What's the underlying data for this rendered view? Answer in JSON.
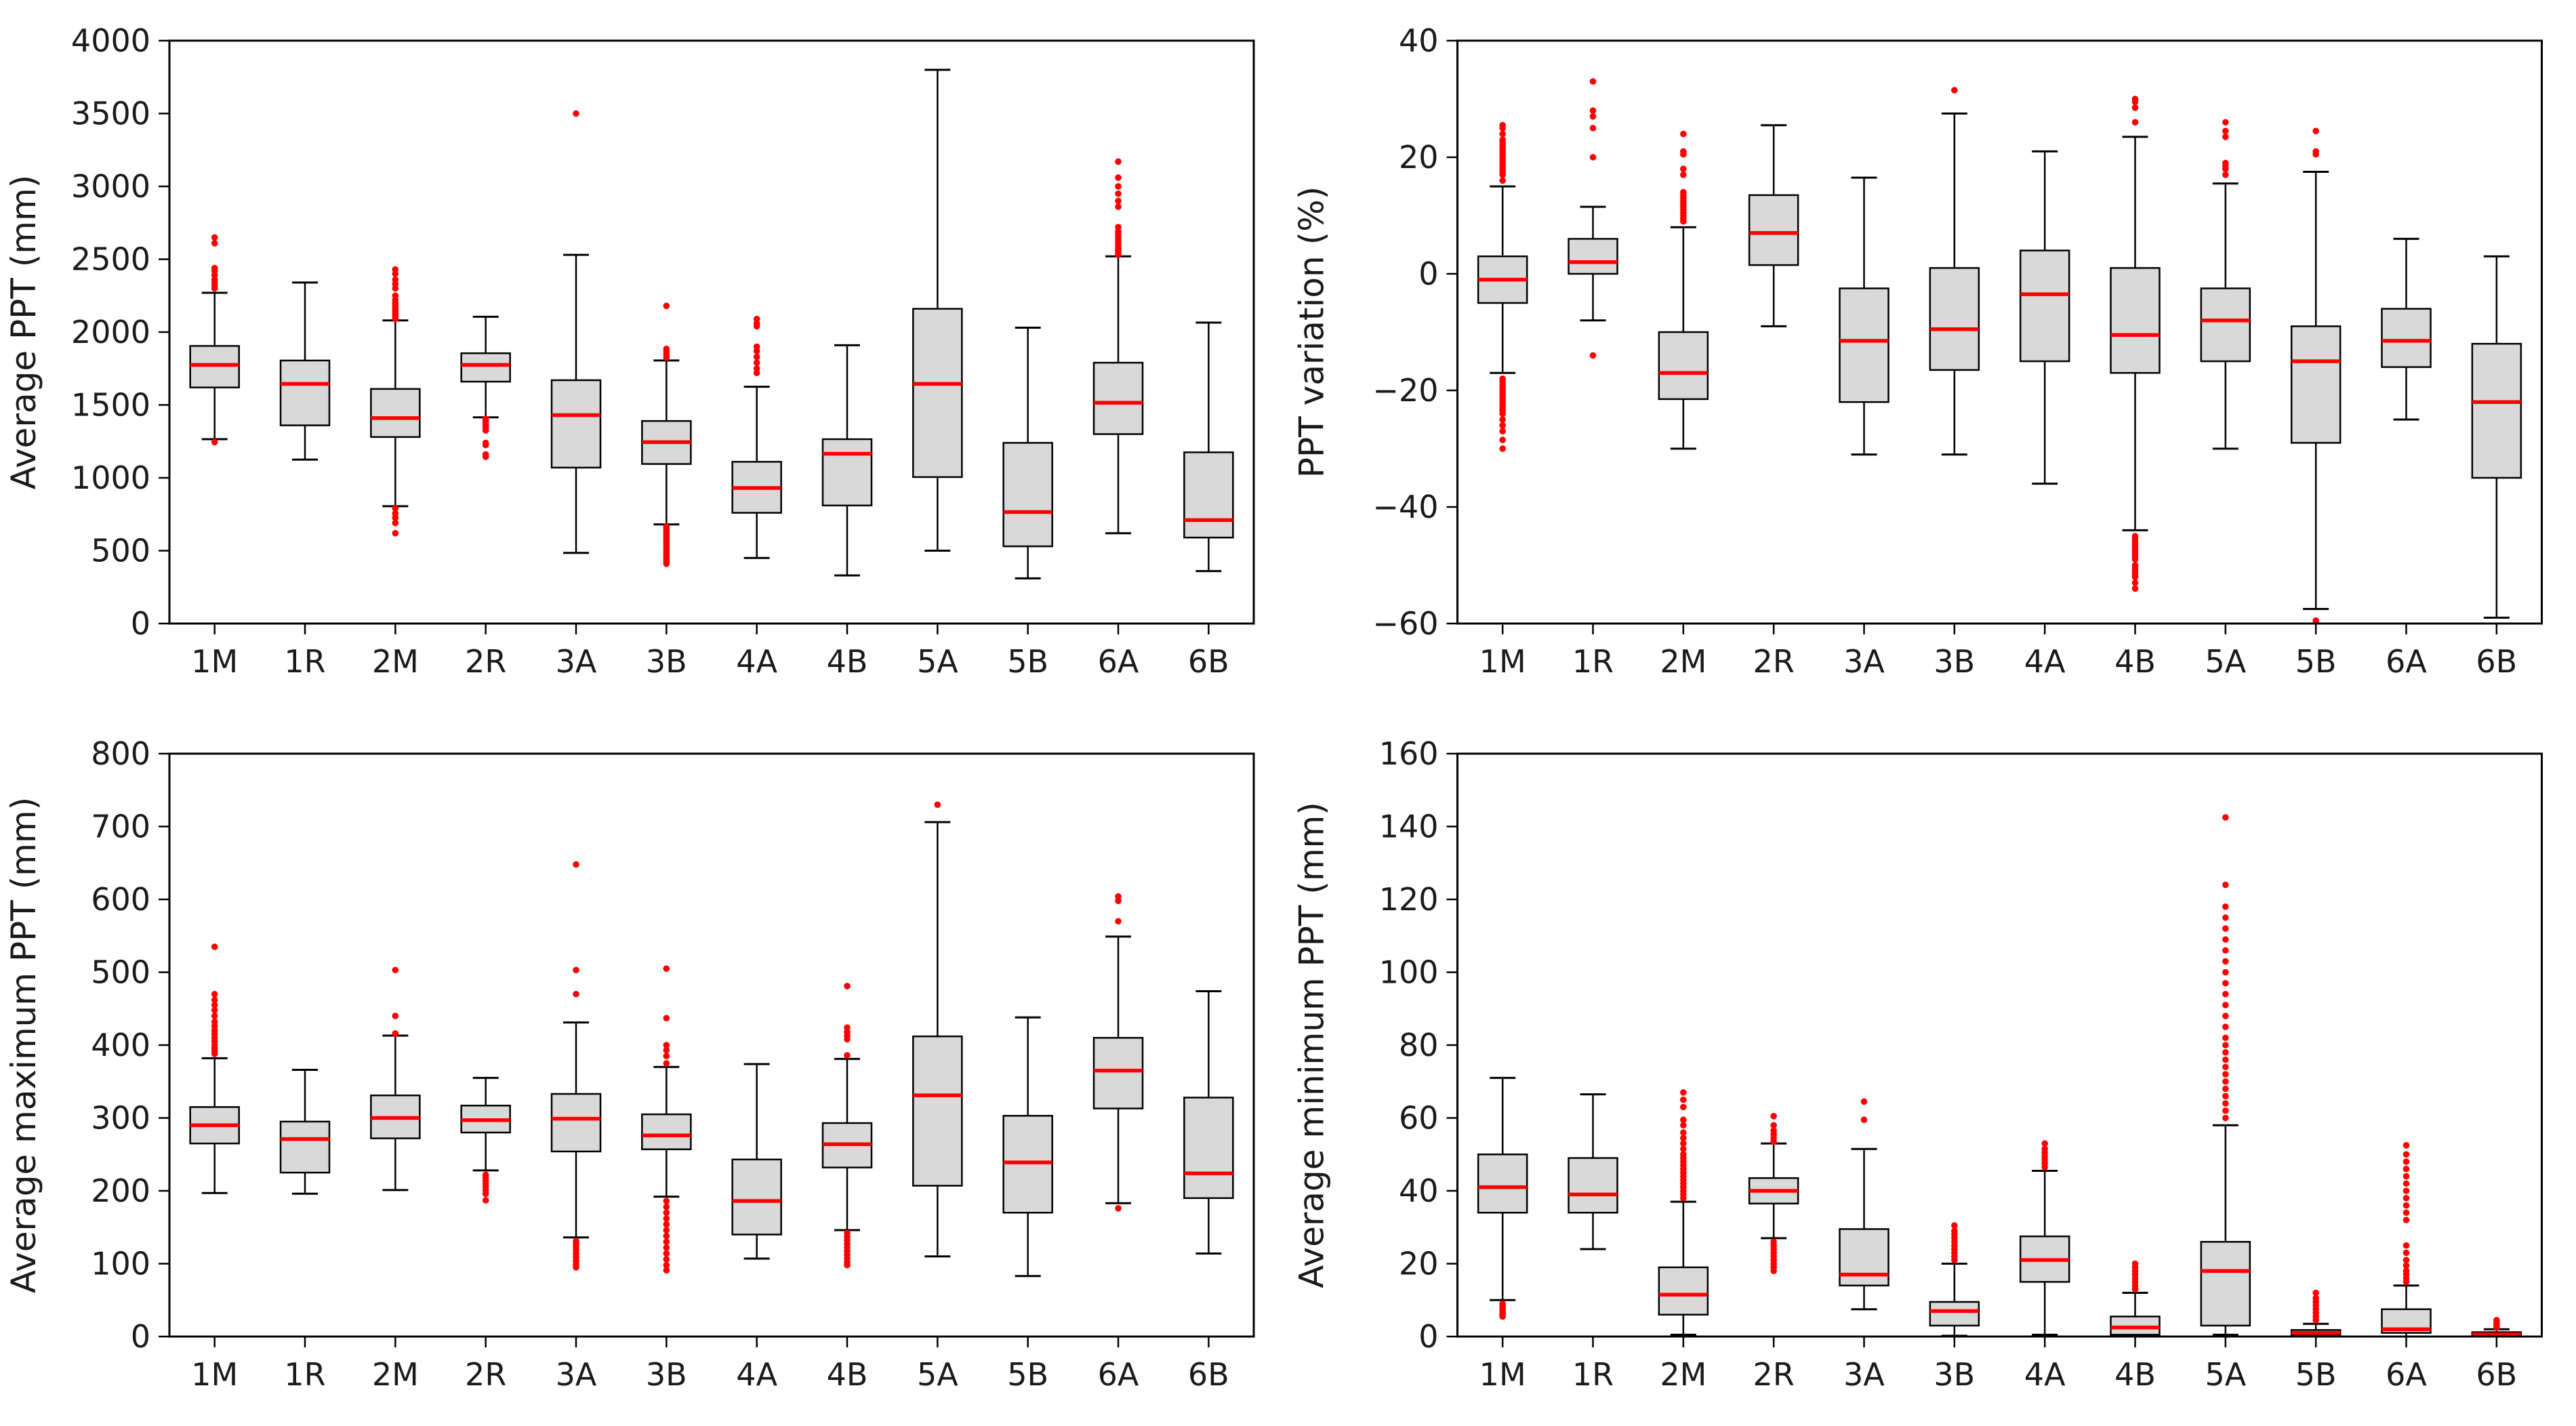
{
  "style": {
    "background": "#ffffff",
    "box_fill": "#d9d9d9",
    "box_edge": "#000000",
    "whisker_color": "#000000",
    "median_color": "#ff0000",
    "flier_color": "#ff0000",
    "text_color": "#1a1a1a",
    "tick_font_size": 46,
    "label_font_size": 50
  },
  "categories": [
    "1M",
    "1R",
    "2M",
    "2R",
    "3A",
    "3B",
    "4A",
    "4B",
    "5A",
    "5B",
    "6A",
    "6B"
  ],
  "chart_data": [
    {
      "type": "box",
      "name": "average-ppt",
      "position": "top-left",
      "title": "",
      "xlabel": "",
      "ylabel": "Average PPT (mm)",
      "ylim": [
        0,
        4000
      ],
      "yticks": [
        0,
        500,
        1000,
        1500,
        2000,
        2500,
        3000,
        3500,
        4000
      ],
      "grid": false,
      "categories": [
        "1M",
        "1R",
        "2M",
        "2R",
        "3A",
        "3B",
        "4A",
        "4B",
        "5A",
        "5B",
        "6A",
        "6B"
      ],
      "boxes": [
        {
          "category": "1M",
          "whislo": 1265,
          "q1": 1620,
          "med": 1775,
          "q3": 1905,
          "whishi": 2270,
          "fliers": [
            2300,
            2320,
            2340,
            2360,
            2390,
            2420,
            2440,
            2610,
            2650,
            1245
          ]
        },
        {
          "category": "1R",
          "whislo": 1125,
          "q1": 1360,
          "med": 1645,
          "q3": 1805,
          "whishi": 2340,
          "fliers": []
        },
        {
          "category": "2M",
          "whislo": 805,
          "q1": 1280,
          "med": 1410,
          "q3": 1610,
          "whishi": 2080,
          "fliers": [
            2090,
            2100,
            2115,
            2130,
            2145,
            2160,
            2180,
            2200,
            2220,
            2250,
            2300,
            2330,
            2360,
            2400,
            2430,
            790,
            755,
            725,
            690,
            620
          ]
        },
        {
          "category": "2R",
          "whislo": 1415,
          "q1": 1660,
          "med": 1775,
          "q3": 1855,
          "whishi": 2105,
          "fliers": [
            1405,
            1395,
            1385,
            1370,
            1355,
            1340,
            1325,
            1240,
            1225,
            1160,
            1145
          ]
        },
        {
          "category": "3A",
          "whislo": 485,
          "q1": 1070,
          "med": 1430,
          "q3": 1670,
          "whishi": 2530,
          "fliers": [
            3500
          ]
        },
        {
          "category": "3B",
          "whislo": 680,
          "q1": 1095,
          "med": 1245,
          "q3": 1390,
          "whishi": 1805,
          "fliers": [
            1825,
            1845,
            1865,
            1885,
            2180,
            665,
            650,
            635,
            620,
            605,
            590,
            575,
            560,
            545,
            530,
            515,
            500,
            485,
            470,
            455,
            440,
            425,
            410
          ]
        },
        {
          "category": "4A",
          "whislo": 450,
          "q1": 760,
          "med": 930,
          "q3": 1110,
          "whishi": 1625,
          "fliers": [
            1720,
            1750,
            1790,
            1830,
            1870,
            1900,
            2040,
            2060,
            2090
          ]
        },
        {
          "category": "4B",
          "whislo": 330,
          "q1": 810,
          "med": 1165,
          "q3": 1265,
          "whishi": 1910,
          "fliers": []
        },
        {
          "category": "5A",
          "whislo": 500,
          "q1": 1005,
          "med": 1645,
          "q3": 2160,
          "whishi": 3800,
          "fliers": []
        },
        {
          "category": "5B",
          "whislo": 310,
          "q1": 530,
          "med": 765,
          "q3": 1240,
          "whishi": 2030,
          "fliers": []
        },
        {
          "category": "6A",
          "whislo": 620,
          "q1": 1300,
          "med": 1515,
          "q3": 1790,
          "whishi": 2520,
          "fliers": [
            2530,
            2545,
            2560,
            2575,
            2590,
            2610,
            2630,
            2650,
            2670,
            2690,
            2720,
            2860,
            2900,
            2950,
            3000,
            3060,
            3170
          ]
        },
        {
          "category": "6B",
          "whislo": 360,
          "q1": 590,
          "med": 710,
          "q3": 1175,
          "whishi": 2065,
          "fliers": []
        }
      ]
    },
    {
      "type": "box",
      "name": "ppt-variation",
      "position": "top-right",
      "title": "",
      "xlabel": "",
      "ylabel": "PPT variation (%)",
      "ylim": [
        -60,
        40
      ],
      "yticks": [
        -60,
        -40,
        -20,
        0,
        20,
        40
      ],
      "grid": false,
      "categories": [
        "1M",
        "1R",
        "2M",
        "2R",
        "3A",
        "3B",
        "4A",
        "4B",
        "5A",
        "5B",
        "6A",
        "6B"
      ],
      "boxes": [
        {
          "category": "1M",
          "whislo": -17,
          "q1": -5,
          "med": -1,
          "q3": 3,
          "whishi": 15,
          "fliers": [
            16,
            17,
            17.5,
            18,
            18.5,
            19,
            19.5,
            20,
            20.5,
            21,
            21.5,
            22,
            22.5,
            23,
            24,
            25,
            25.5,
            -18,
            -18.5,
            -19,
            -19.5,
            -20,
            -20.5,
            -21,
            -21.5,
            -22,
            -22.5,
            -23,
            -23.5,
            -24,
            -25,
            -26,
            -27,
            -28.5,
            -30
          ]
        },
        {
          "category": "1R",
          "whislo": -8,
          "q1": 0,
          "med": 2,
          "q3": 6,
          "whishi": 11.5,
          "fliers": [
            20,
            25,
            27,
            28,
            33,
            -14
          ]
        },
        {
          "category": "2M",
          "whislo": -30,
          "q1": -21.5,
          "med": -17,
          "q3": -10,
          "whishi": 8,
          "fliers": [
            9,
            9.5,
            10,
            10.5,
            11,
            11.5,
            12,
            12.5,
            13,
            13.5,
            14,
            17,
            18,
            20.5,
            21,
            24
          ]
        },
        {
          "category": "2R",
          "whislo": -9,
          "q1": 1.5,
          "med": 7,
          "q3": 13.5,
          "whishi": 25.5,
          "fliers": []
        },
        {
          "category": "3A",
          "whislo": -31,
          "q1": -22,
          "med": -11.5,
          "q3": -2.5,
          "whishi": 16.5,
          "fliers": []
        },
        {
          "category": "3B",
          "whislo": -31,
          "q1": -16.5,
          "med": -9.5,
          "q3": 1,
          "whishi": 27.5,
          "fliers": [
            31.5
          ]
        },
        {
          "category": "4A",
          "whislo": -36,
          "q1": -15,
          "med": -3.5,
          "q3": 4,
          "whishi": 21,
          "fliers": []
        },
        {
          "category": "4B",
          "whislo": -44,
          "q1": -17,
          "med": -10.5,
          "q3": 1,
          "whishi": 23.5,
          "fliers": [
            26,
            28.5,
            29.5,
            30,
            -45,
            -45.5,
            -46,
            -46.5,
            -47,
            -47.5,
            -48,
            -48.5,
            -49,
            -50,
            -50.5,
            -51,
            -51.5,
            -52,
            -53,
            -54
          ]
        },
        {
          "category": "5A",
          "whislo": -30,
          "q1": -15,
          "med": -8,
          "q3": -2.5,
          "whishi": 15.5,
          "fliers": [
            17,
            18,
            18.5,
            19,
            23.5,
            24.5,
            26
          ]
        },
        {
          "category": "5B",
          "whislo": -57.5,
          "q1": -29,
          "med": -15,
          "q3": -9,
          "whishi": 17.5,
          "fliers": [
            20.5,
            21,
            24.5,
            -59.5
          ]
        },
        {
          "category": "6A",
          "whislo": -25,
          "q1": -16,
          "med": -11.5,
          "q3": -6,
          "whishi": 6,
          "fliers": []
        },
        {
          "category": "6B",
          "whislo": -59,
          "q1": -35,
          "med": -22,
          "q3": -12,
          "whishi": 3,
          "fliers": []
        }
      ]
    },
    {
      "type": "box",
      "name": "average-maximum-ppt",
      "position": "bottom-left",
      "title": "",
      "xlabel": "",
      "ylabel": "Average maximum PPT (mm)",
      "ylim": [
        0,
        800
      ],
      "yticks": [
        0,
        100,
        200,
        300,
        400,
        500,
        600,
        700,
        800
      ],
      "grid": false,
      "categories": [
        "1M",
        "1R",
        "2M",
        "2R",
        "3A",
        "3B",
        "4A",
        "4B",
        "5A",
        "5B",
        "6A",
        "6B"
      ],
      "boxes": [
        {
          "category": "1M",
          "whislo": 197,
          "q1": 265,
          "med": 290,
          "q3": 315,
          "whishi": 382,
          "fliers": [
            388,
            392,
            396,
            400,
            405,
            410,
            415,
            420,
            426,
            432,
            440,
            448,
            455,
            462,
            470,
            535
          ]
        },
        {
          "category": "1R",
          "whislo": 196,
          "q1": 225,
          "med": 271,
          "q3": 295,
          "whishi": 366,
          "fliers": []
        },
        {
          "category": "2M",
          "whislo": 201,
          "q1": 272,
          "med": 300,
          "q3": 331,
          "whishi": 413,
          "fliers": [
            416,
            440,
            503
          ]
        },
        {
          "category": "2R",
          "whislo": 228,
          "q1": 280,
          "med": 297,
          "q3": 317,
          "whishi": 355,
          "fliers": [
            222,
            218,
            214,
            210,
            206,
            201,
            196,
            187
          ]
        },
        {
          "category": "3A",
          "whislo": 136,
          "q1": 254,
          "med": 299,
          "q3": 333,
          "whishi": 431,
          "fliers": [
            470,
            503,
            648,
            131,
            127,
            123,
            119,
            114,
            109,
            104,
            99,
            95
          ]
        },
        {
          "category": "3B",
          "whislo": 192,
          "q1": 257,
          "med": 276,
          "q3": 305,
          "whishi": 370,
          "fliers": [
            375,
            385,
            393,
            400,
            437,
            505,
            186,
            178,
            170,
            162,
            154,
            146,
            138,
            130,
            122,
            114,
            106,
            98,
            91
          ]
        },
        {
          "category": "4A",
          "whislo": 107,
          "q1": 140,
          "med": 186,
          "q3": 243,
          "whishi": 374,
          "fliers": []
        },
        {
          "category": "4B",
          "whislo": 146,
          "q1": 232,
          "med": 264,
          "q3": 293,
          "whishi": 381,
          "fliers": [
            386,
            408,
            413,
            418,
            424,
            481,
            142,
            137,
            132,
            127,
            122,
            117,
            112,
            107,
            102,
            98
          ]
        },
        {
          "category": "5A",
          "whislo": 110,
          "q1": 207,
          "med": 331,
          "q3": 412,
          "whishi": 706,
          "fliers": [
            730
          ]
        },
        {
          "category": "5B",
          "whislo": 83,
          "q1": 170,
          "med": 239,
          "q3": 303,
          "whishi": 438,
          "fliers": []
        },
        {
          "category": "6A",
          "whislo": 183,
          "q1": 313,
          "med": 365,
          "q3": 410,
          "whishi": 549,
          "fliers": [
            570,
            598,
            604,
            176
          ]
        },
        {
          "category": "6B",
          "whislo": 114,
          "q1": 190,
          "med": 224,
          "q3": 328,
          "whishi": 474,
          "fliers": []
        }
      ]
    },
    {
      "type": "box",
      "name": "average-minimum-ppt",
      "position": "bottom-right",
      "title": "",
      "xlabel": "",
      "ylabel": "Average minimum PPT (mm)",
      "ylim": [
        0,
        160
      ],
      "yticks": [
        0,
        20,
        40,
        60,
        80,
        100,
        120,
        140,
        160
      ],
      "grid": false,
      "categories": [
        "1M",
        "1R",
        "2M",
        "2R",
        "3A",
        "3B",
        "4A",
        "4B",
        "5A",
        "5B",
        "6A",
        "6B"
      ],
      "boxes": [
        {
          "category": "1M",
          "whislo": 10,
          "q1": 34,
          "med": 41,
          "q3": 50,
          "whishi": 71,
          "fliers": [
            9,
            8.5,
            8,
            7.5,
            7,
            6.5,
            6,
            5.5
          ]
        },
        {
          "category": "1R",
          "whislo": 24,
          "q1": 34,
          "med": 39,
          "q3": 49,
          "whishi": 66.5,
          "fliers": []
        },
        {
          "category": "2M",
          "whislo": 0.5,
          "q1": 6,
          "med": 11.5,
          "q3": 19,
          "whishi": 37,
          "fliers": [
            38,
            39,
            40,
            41,
            42,
            43,
            44,
            45,
            46,
            47,
            48,
            49,
            50,
            51.5,
            53,
            54.5,
            56,
            58,
            59.5,
            63,
            65,
            67
          ]
        },
        {
          "category": "2R",
          "whislo": 27,
          "q1": 36.5,
          "med": 40,
          "q3": 43.5,
          "whishi": 53,
          "fliers": [
            53.5,
            54.5,
            55.5,
            56.5,
            58,
            60.5,
            26,
            25,
            24,
            23,
            22,
            21,
            20,
            19,
            18
          ]
        },
        {
          "category": "3A",
          "whislo": 7.5,
          "q1": 14,
          "med": 17,
          "q3": 29.5,
          "whishi": 51.5,
          "fliers": [
            59.5,
            64.5
          ]
        },
        {
          "category": "3B",
          "whislo": 0.2,
          "q1": 3,
          "med": 7,
          "q3": 9.5,
          "whishi": 20,
          "fliers": [
            21,
            22,
            23,
            24,
            25,
            26,
            27,
            28,
            29,
            30.5
          ]
        },
        {
          "category": "4A",
          "whislo": 0.5,
          "q1": 15,
          "med": 21,
          "q3": 27.5,
          "whishi": 45.5,
          "fliers": [
            46.5,
            47.5,
            48.5,
            49.5,
            50.5,
            51.5,
            53
          ]
        },
        {
          "category": "4B",
          "whislo": 0,
          "q1": 0.5,
          "med": 2.5,
          "q3": 5.5,
          "whishi": 12,
          "fliers": [
            13,
            14,
            15,
            16,
            17,
            18,
            19,
            20
          ]
        },
        {
          "category": "5A",
          "whislo": 0.5,
          "q1": 3,
          "med": 18,
          "q3": 26,
          "whishi": 58,
          "fliers": [
            60,
            62,
            64,
            66,
            68,
            70,
            72,
            74,
            76,
            78,
            80,
            82,
            85,
            88,
            91,
            94,
            97,
            100,
            103,
            106,
            109,
            112,
            115,
            118,
            124,
            142.5
          ]
        },
        {
          "category": "5B",
          "whislo": 0,
          "q1": 0.3,
          "med": 1,
          "q3": 1.8,
          "whishi": 3.5,
          "fliers": [
            4.5,
            5.5,
            6.5,
            7.5,
            8.5,
            9.5,
            10.5,
            12
          ]
        },
        {
          "category": "6A",
          "whislo": 0,
          "q1": 1,
          "med": 2,
          "q3": 7.5,
          "whishi": 14,
          "fliers": [
            15,
            16,
            17,
            18,
            19.5,
            21,
            23,
            25,
            32,
            34,
            36,
            38,
            40,
            42,
            44,
            46,
            48,
            50,
            52.5
          ]
        },
        {
          "category": "6B",
          "whislo": 0,
          "q1": 0.2,
          "med": 0.6,
          "q3": 1.2,
          "whishi": 2,
          "fliers": [
            2.5,
            3,
            3.5,
            4,
            4.5
          ]
        }
      ]
    }
  ]
}
